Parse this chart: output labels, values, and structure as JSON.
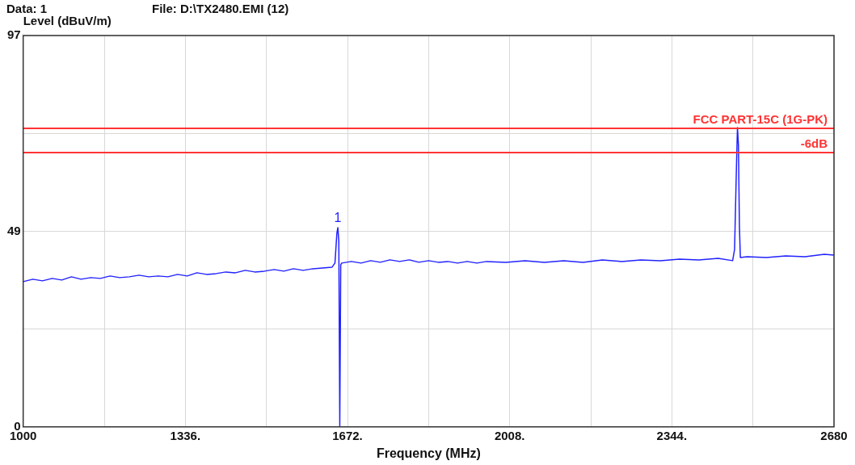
{
  "chart_data": {
    "type": "line",
    "title": "File: D:\\TX2480.EMI  (12)",
    "ylabel": "Level (dBuV/m)",
    "xlabel": "Frequency (MHz)",
    "annotations": [
      "Data: 1",
      {
        "text": "1",
        "x": 1652,
        "y": 49.4
      }
    ],
    "xlim": [
      1000,
      2680
    ],
    "xticks": [
      1000,
      {
        "value": 1168,
        "label": null
      },
      {
        "value": 1336,
        "label": "1336."
      },
      {
        "value": 1504,
        "label": null
      },
      {
        "value": 1672,
        "label": "1672."
      },
      {
        "value": 1840,
        "label": null
      },
      {
        "value": 2008,
        "label": "2008."
      },
      {
        "value": 2176,
        "label": null
      },
      {
        "value": 2344,
        "label": "2344."
      },
      {
        "value": 2512,
        "label": null
      },
      2680
    ],
    "ylim": [
      0,
      97
    ],
    "yticks": [
      0,
      {
        "value": 24.25,
        "label": null
      },
      {
        "value": 48.5,
        "label": "49"
      },
      {
        "value": 72.75,
        "label": null
      },
      97
    ],
    "grid": true,
    "legend": false,
    "marker": "none",
    "line_style": "solid",
    "ref_lines": [
      {
        "axis": "y",
        "value": 74,
        "label": "FCC PART-15C (1G-PK)",
        "color": "#ff3333"
      },
      {
        "axis": "y",
        "value": 68,
        "label": "-6dB",
        "color": "#ff3333"
      }
    ],
    "series": [
      {
        "color": "#2222ff",
        "x": [
          1000,
          1020,
          1040,
          1060,
          1080,
          1100,
          1120,
          1140,
          1160,
          1180,
          1200,
          1220,
          1240,
          1260,
          1280,
          1300,
          1320,
          1340,
          1360,
          1380,
          1400,
          1420,
          1440,
          1460,
          1480,
          1500,
          1520,
          1540,
          1560,
          1580,
          1600,
          1620,
          1640,
          1646,
          1650,
          1652,
          1654,
          1656,
          1658,
          1660,
          1680,
          1700,
          1720,
          1740,
          1760,
          1780,
          1800,
          1820,
          1840,
          1860,
          1880,
          1900,
          1920,
          1940,
          1960,
          2000,
          2040,
          2080,
          2120,
          2160,
          2200,
          2240,
          2280,
          2320,
          2360,
          2400,
          2440,
          2470,
          2474,
          2478,
          2480,
          2482,
          2484,
          2486,
          2500,
          2540,
          2580,
          2620,
          2660,
          2680
        ],
        "values": [
          36.0,
          36.6,
          36.2,
          36.8,
          36.4,
          37.2,
          36.6,
          37.0,
          36.8,
          37.4,
          37.0,
          37.2,
          37.6,
          37.2,
          37.4,
          37.2,
          37.8,
          37.4,
          38.2,
          37.8,
          38.0,
          38.4,
          38.2,
          38.8,
          38.4,
          38.6,
          39.0,
          38.6,
          39.2,
          38.8,
          39.2,
          39.4,
          39.6,
          40.6,
          48.0,
          49.4,
          46.0,
          0,
          40.2,
          40.6,
          41.0,
          40.6,
          41.2,
          40.8,
          41.4,
          41.0,
          41.4,
          40.8,
          41.2,
          40.8,
          41.0,
          40.6,
          41.0,
          40.6,
          41.0,
          40.8,
          41.2,
          40.8,
          41.2,
          40.8,
          41.4,
          41.0,
          41.4,
          41.2,
          41.6,
          41.4,
          41.8,
          41.2,
          44.0,
          65.0,
          74.2,
          70.0,
          50.0,
          42.0,
          42.2,
          42.0,
          42.4,
          42.2,
          42.8,
          42.6
        ]
      }
    ]
  }
}
